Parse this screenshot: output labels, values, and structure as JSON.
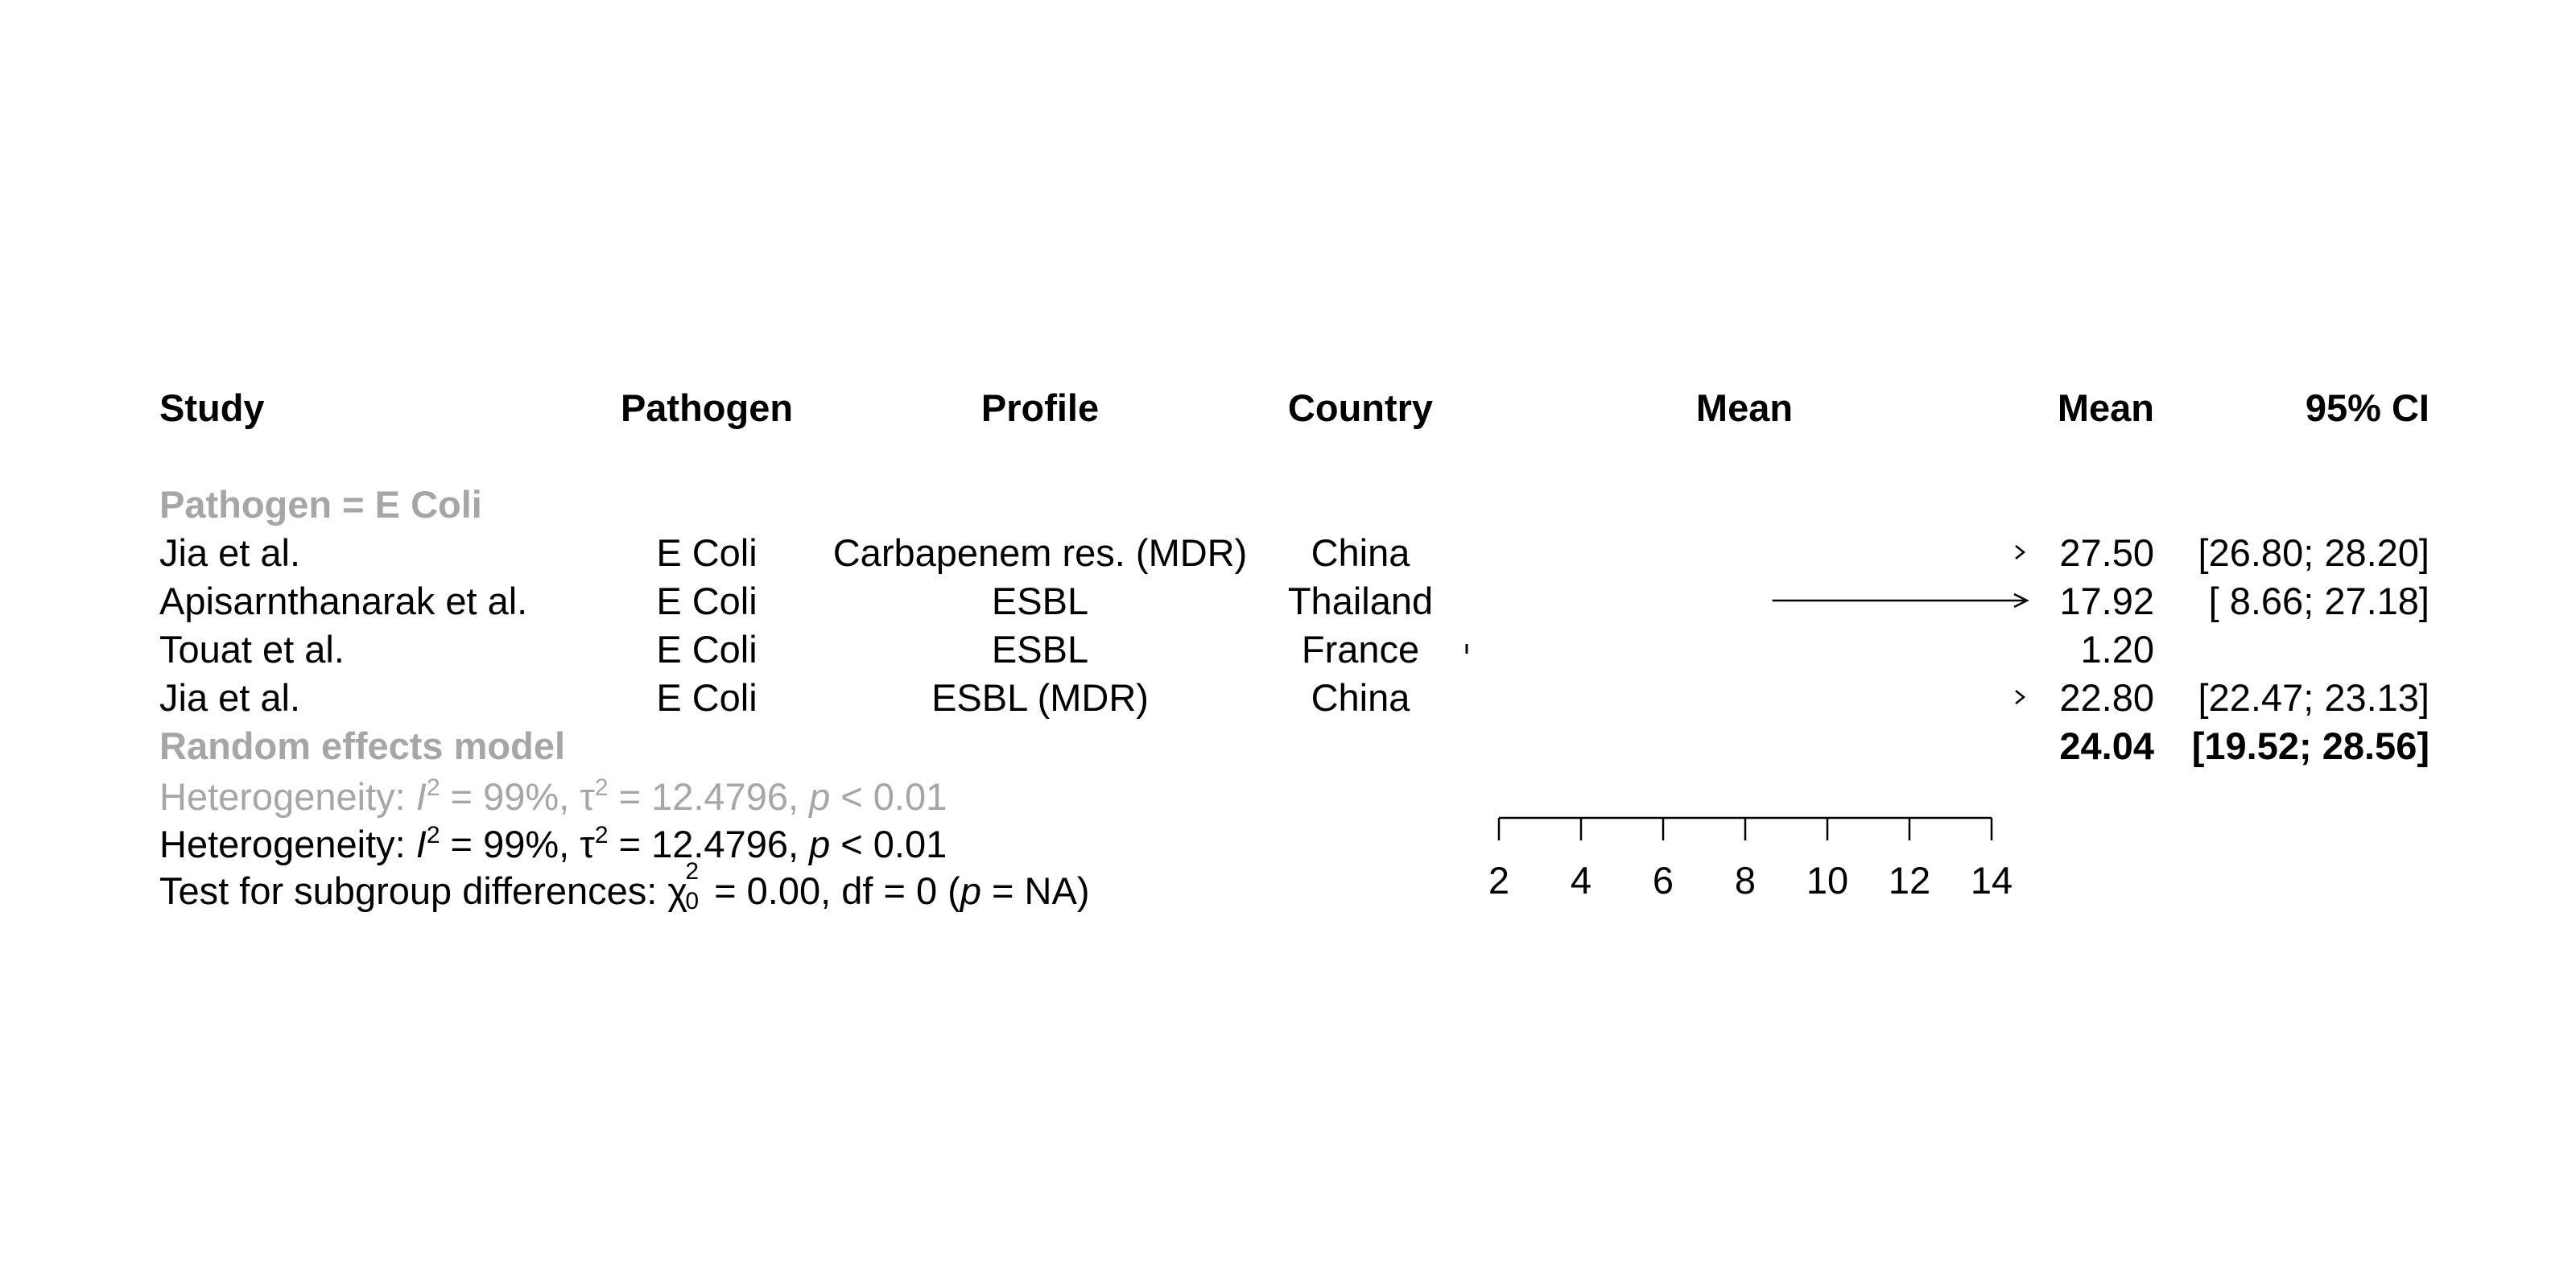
{
  "headers": {
    "study": "Study",
    "pathogen": "Pathogen",
    "profile": "Profile",
    "country": "Country",
    "plot": "Mean",
    "mean": "Mean",
    "ci": "95% CI"
  },
  "subgroup_label": "Pathogen = E Coli",
  "studies": [
    {
      "study": "Jia et al.",
      "pathogen": "E Coli",
      "profile": "Carbapenem res. (MDR)",
      "country": "China",
      "mean": "27.50",
      "ci": "[26.80; 28.20]"
    },
    {
      "study": "Apisarnthanarak et al.",
      "pathogen": "E Coli",
      "profile": "ESBL",
      "country": "Thailand",
      "mean": "17.92",
      "ci": "[ 8.66; 27.18]"
    },
    {
      "study": "Touat et al.",
      "pathogen": "E Coli",
      "profile": "ESBL",
      "country": "France",
      "mean": "1.20",
      "ci": ""
    },
    {
      "study": "Jia et al.",
      "pathogen": "E Coli",
      "profile": "ESBL (MDR)",
      "country": "China",
      "mean": "22.80",
      "ci": "[22.47; 23.13]"
    }
  ],
  "random_effects": {
    "label": "Random effects model",
    "mean": "24.04",
    "ci": "[19.52; 28.56]"
  },
  "heterogeneity_subgroup": {
    "prefix": "Heterogeneity: ",
    "i_sym": "I",
    "sq": "2",
    "i_val": " = 99%, ",
    "tau_sym": "τ",
    "tau_val": " = 12.4796, ",
    "p_sym": "p",
    "p_val": " < 0.01"
  },
  "heterogeneity_overall": {
    "prefix": "Heterogeneity: ",
    "i_sym": "I",
    "sq": "2",
    "i_val": " = 99%, ",
    "tau_sym": "τ",
    "tau_val": " = 12.4796, ",
    "p_sym": "p",
    "p_val": " < 0.01"
  },
  "subgroup_test": {
    "prefix": "Test for subgroup differences: ",
    "chi_sym": "χ",
    "chi_sup": "2",
    "chi_sub": "0",
    "chi_val": " = 0.00, df = 0 (",
    "p_sym": "p",
    "p_val": " = NA)"
  },
  "chart_data": {
    "type": "forest",
    "xlim": [
      2,
      14
    ],
    "ticks": [
      2,
      4,
      6,
      8,
      10,
      12,
      14
    ],
    "tick_labels": [
      "2",
      "4",
      "6",
      "8",
      "10",
      "12",
      "14"
    ],
    "studies": [
      {
        "label": "Jia et al.",
        "mean": 27.5,
        "lower": 26.8,
        "upper": 28.2
      },
      {
        "label": "Apisarnthanarak et al.",
        "mean": 17.92,
        "lower": 8.66,
        "upper": 27.18
      },
      {
        "label": "Touat et al.",
        "mean": 1.2,
        "lower": null,
        "upper": null
      },
      {
        "label": "Jia et al.",
        "mean": 22.8,
        "lower": 22.47,
        "upper": 23.13
      }
    ],
    "pooled": {
      "label": "Random effects model",
      "mean": 24.04,
      "lower": 19.52,
      "upper": 28.56
    }
  }
}
